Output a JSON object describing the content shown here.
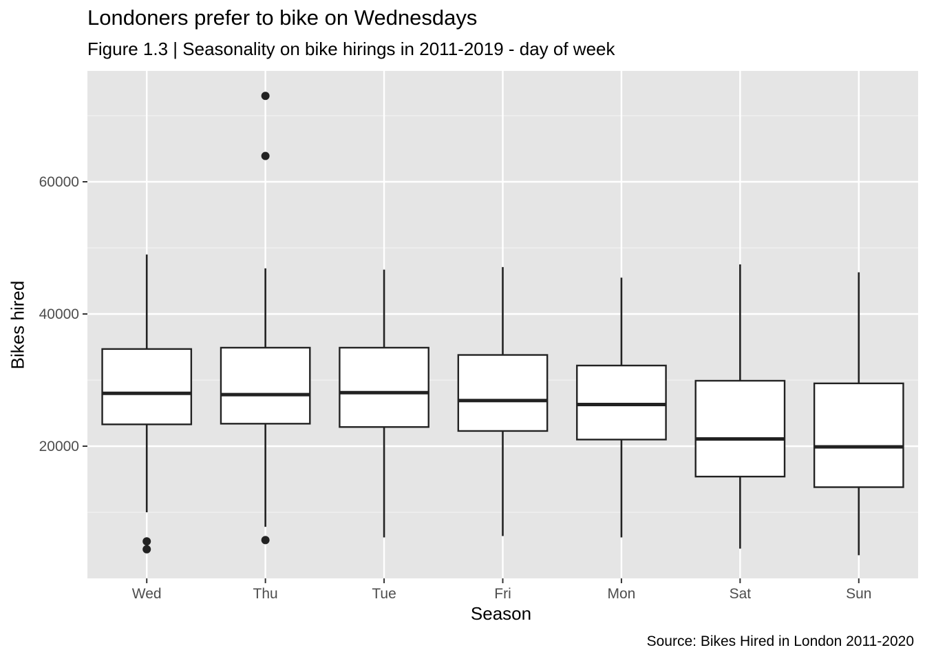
{
  "chart_data": {
    "type": "boxplot",
    "title": "Londoners prefer to bike on Wednesdays",
    "subtitle": "Figure 1.3 | Seasonality on bike hirings in 2011-2019 - day of week",
    "caption": "Source: Bikes Hired in London 2011-2020",
    "xlabel": "Season",
    "ylabel": "Bikes hired",
    "ylim": [
      0,
      73000
    ],
    "yticks": [
      20000,
      40000,
      60000
    ],
    "grid": true,
    "background": "#e5e5e5",
    "categories": [
      "Wed",
      "Thu",
      "Tue",
      "Fri",
      "Mon",
      "Sat",
      "Sun"
    ],
    "boxes": [
      {
        "category": "Wed",
        "lower_whisker": 10000,
        "q1": 23300,
        "median": 28000,
        "q3": 34700,
        "upper_whisker": 49000,
        "outliers": [
          5600,
          4400
        ]
      },
      {
        "category": "Thu",
        "lower_whisker": 7800,
        "q1": 23400,
        "median": 27800,
        "q3": 34900,
        "upper_whisker": 46900,
        "outliers": [
          73000,
          63900,
          5800
        ]
      },
      {
        "category": "Tue",
        "lower_whisker": 6200,
        "q1": 22900,
        "median": 28100,
        "q3": 34900,
        "upper_whisker": 46700,
        "outliers": []
      },
      {
        "category": "Fri",
        "lower_whisker": 6400,
        "q1": 22300,
        "median": 26900,
        "q3": 33800,
        "upper_whisker": 47100,
        "outliers": []
      },
      {
        "category": "Mon",
        "lower_whisker": 6200,
        "q1": 21000,
        "median": 26300,
        "q3": 32200,
        "upper_whisker": 45500,
        "outliers": []
      },
      {
        "category": "Sat",
        "lower_whisker": 4500,
        "q1": 15400,
        "median": 21100,
        "q3": 29900,
        "upper_whisker": 47500,
        "outliers": []
      },
      {
        "category": "Sun",
        "lower_whisker": 3500,
        "q1": 13800,
        "median": 19900,
        "q3": 29500,
        "upper_whisker": 46300,
        "outliers": []
      }
    ]
  }
}
